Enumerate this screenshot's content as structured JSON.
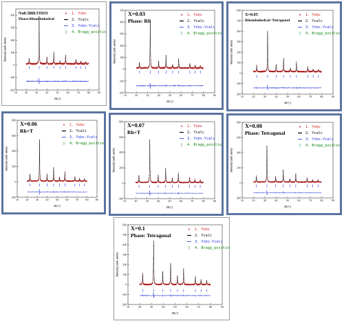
{
  "legend_labels": [
    "1. Yobs",
    "2. Ycalc",
    "3. Yobs-Ycalc",
    "4. Bragg_position"
  ],
  "colors": {
    "yobs": "#d42020",
    "ycalc": "#000000",
    "diff": "#2233dd",
    "bragg": "#118811",
    "frame": "#5a73a0"
  },
  "chart_data": [
    {
      "type": "line",
      "title": "Na0.5Bi0.5TiO3",
      "subtitle": "Phase:Rhombohedral",
      "xlabel": "2θ (°)",
      "ylabel": "Intensity (arb. units)",
      "xlim": [
        10,
        90
      ],
      "ylim": [
        -200,
        450
      ],
      "x_ticks": [
        10,
        20,
        30,
        40,
        50,
        60,
        70,
        80,
        90
      ],
      "y_ticks": [
        -200,
        -100,
        0,
        100,
        200,
        300,
        400
      ],
      "peaks": [
        [
          22.8,
          45
        ],
        [
          32.4,
          400
        ],
        [
          39.9,
          55
        ],
        [
          46.5,
          95
        ],
        [
          52.4,
          25
        ],
        [
          57.8,
          70
        ],
        [
          67.8,
          35
        ],
        [
          72.5,
          20
        ],
        [
          77.2,
          18
        ]
      ],
      "baseline": 10,
      "bragg_y": -20,
      "diff_y": -130
    },
    {
      "type": "line",
      "title": "X=0.03",
      "subtitle": "Phase: Rh",
      "xlabel": "2θ (°)",
      "ylabel": "Intensity (arb. units)",
      "xlim": [
        10,
        90
      ],
      "ylim": [
        -200,
        500
      ],
      "x_ticks": [
        10,
        20,
        30,
        40,
        50,
        60,
        70,
        80,
        90
      ],
      "y_ticks": [
        -200,
        -100,
        0,
        100,
        200,
        300,
        400,
        500
      ],
      "peaks": [
        [
          22.8,
          50
        ],
        [
          32.4,
          430
        ],
        [
          39.9,
          60
        ],
        [
          46.5,
          110
        ],
        [
          52.4,
          30
        ],
        [
          57.8,
          80
        ],
        [
          67.8,
          38
        ],
        [
          72.5,
          22
        ],
        [
          77.2,
          20
        ]
      ],
      "baseline": 10,
      "bragg_y": -25,
      "diff_y": -140
    },
    {
      "type": "line",
      "title": "X=0.05",
      "subtitle": "Rhombohedral+Tetragonal",
      "xlabel": "2θ (°)",
      "ylabel": "Intensity (arb. units)",
      "xlim": [
        10,
        90
      ],
      "ylim": [
        -200,
        600
      ],
      "x_ticks": [
        10,
        20,
        30,
        40,
        50,
        60,
        70,
        80,
        90
      ],
      "y_ticks": [
        -200,
        -100,
        0,
        100,
        200,
        300,
        400,
        500,
        600
      ],
      "peaks": [
        [
          22.8,
          60
        ],
        [
          32.4,
          400
        ],
        [
          39.9,
          70
        ],
        [
          46.5,
          130
        ],
        [
          52.4,
          35
        ],
        [
          57.8,
          90
        ],
        [
          67.8,
          45
        ],
        [
          72.5,
          25
        ],
        [
          77.2,
          22
        ]
      ],
      "baseline": 15,
      "bragg_y": -30,
      "diff_y": -140
    },
    {
      "type": "line",
      "title": "X=0.06",
      "subtitle": "Rh+T",
      "xlabel": "2θ (°)",
      "ylabel": "Intensity (arb. units)",
      "xlim": [
        10,
        90
      ],
      "ylim": [
        -200,
        800
      ],
      "x_ticks": [
        10,
        20,
        30,
        40,
        50,
        60,
        70,
        80,
        90
      ],
      "y_ticks": [
        -200,
        0,
        200,
        400,
        600,
        800
      ],
      "peaks": [
        [
          22.8,
          90
        ],
        [
          32.4,
          560
        ],
        [
          39.9,
          90
        ],
        [
          46.5,
          180
        ],
        [
          52.4,
          50
        ],
        [
          57.8,
          120
        ],
        [
          67.8,
          60
        ],
        [
          72.5,
          35
        ],
        [
          77.2,
          30
        ]
      ],
      "baseline": 10,
      "bragg_y": -40,
      "diff_y": -130
    },
    {
      "type": "line",
      "title": "X=0.07",
      "subtitle": "Rh+T",
      "xlabel": "2θ (°)",
      "ylabel": "Intensity (arb. units)",
      "xlim": [
        10,
        90
      ],
      "ylim": [
        -200,
        800
      ],
      "x_ticks": [
        10,
        20,
        30,
        40,
        50,
        60,
        70,
        80,
        90
      ],
      "y_ticks": [
        -200,
        0,
        200,
        400,
        600,
        800
      ],
      "peaks": [
        [
          22.8,
          95
        ],
        [
          32.4,
          580
        ],
        [
          39.9,
          95
        ],
        [
          46.5,
          190
        ],
        [
          52.4,
          55
        ],
        [
          57.8,
          125
        ],
        [
          67.8,
          65
        ],
        [
          72.5,
          38
        ],
        [
          77.2,
          32
        ]
      ],
      "baseline": 10,
      "bragg_y": -40,
      "diff_y": -130
    },
    {
      "type": "line",
      "title": "X=0.08",
      "subtitle": "Phase: Tetragonal",
      "xlabel": "2θ (°)",
      "ylabel": "Intensity (arb. units)",
      "xlim": [
        10,
        90
      ],
      "ylim": [
        -200,
        800
      ],
      "x_ticks": [
        10,
        20,
        30,
        40,
        50,
        60,
        70,
        80,
        90
      ],
      "y_ticks": [
        -200,
        0,
        200,
        400,
        600,
        800
      ],
      "peaks": [
        [
          22.5,
          80
        ],
        [
          31.8,
          500
        ],
        [
          39.5,
          80
        ],
        [
          46.2,
          170
        ],
        [
          52.0,
          45
        ],
        [
          57.2,
          110
        ],
        [
          67.2,
          55
        ],
        [
          72.0,
          30
        ],
        [
          76.8,
          28
        ]
      ],
      "baseline": 10,
      "bragg_y": -40,
      "diff_y": -130
    },
    {
      "type": "line",
      "title": "X=0.1",
      "subtitle": "Phase: Tetragonal",
      "xlabel": "2θ (°)",
      "ylabel": "Intensity (arb. units)",
      "xlim": [
        10,
        90
      ],
      "ylim": [
        -200,
        600
      ],
      "x_ticks": [
        10,
        20,
        30,
        40,
        50,
        60,
        70,
        80,
        90
      ],
      "y_ticks": [
        -200,
        -100,
        0,
        100,
        200,
        300,
        400,
        500,
        600
      ],
      "peaks": [
        [
          22.5,
          110
        ],
        [
          31.8,
          460
        ],
        [
          39.5,
          140
        ],
        [
          46.2,
          220
        ],
        [
          52.0,
          90
        ],
        [
          57.2,
          160
        ],
        [
          67.2,
          80
        ],
        [
          72.0,
          50
        ],
        [
          76.8,
          45
        ]
      ],
      "baseline": 0,
      "bragg_y": -60,
      "diff_y": -110
    }
  ]
}
